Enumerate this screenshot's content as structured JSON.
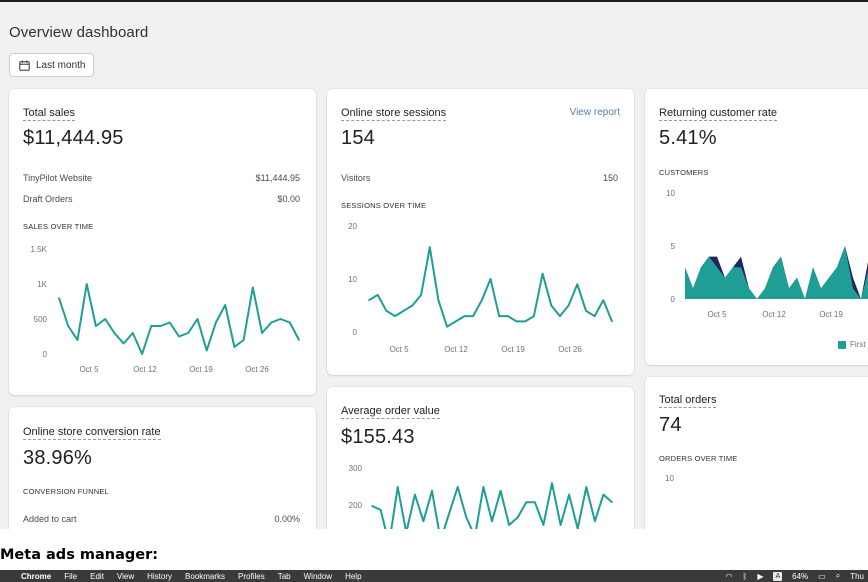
{
  "page": {
    "title": "Overview dashboard",
    "date_range": "Last month"
  },
  "cards": {
    "total_sales": {
      "title": "Total sales",
      "value": "$11,444.95",
      "rows": [
        {
          "label": "TinyPilot Website",
          "value": "$11,444.95"
        },
        {
          "label": "Draft Orders",
          "value": "$0.00"
        }
      ],
      "section_label": "SALES OVER TIME"
    },
    "sessions": {
      "title": "Online store sessions",
      "link": "View report",
      "value": "154",
      "rows": [
        {
          "label": "Visitors",
          "value": "150"
        }
      ],
      "section_label": "SESSIONS OVER TIME"
    },
    "returning": {
      "title": "Returning customer rate",
      "value": "5.41%",
      "section_label": "CUSTOMERS",
      "legend": "First"
    },
    "conversion": {
      "title": "Online store conversion rate",
      "value": "38.96%",
      "section_label": "CONVERSION FUNNEL",
      "rows": [
        {
          "label": "Added to cart",
          "value": "0.00%"
        }
      ]
    },
    "aov": {
      "title": "Average order value",
      "value": "$155.43"
    },
    "total_orders": {
      "title": "Total orders",
      "value": "74",
      "section_label": "ORDERS OVER TIME",
      "y_tick": "10"
    }
  },
  "chart_data": [
    {
      "type": "line",
      "title": "SALES OVER TIME",
      "y_ticks": [
        "1.5K",
        "1K",
        "500",
        "0"
      ],
      "ylim": [
        0,
        1500
      ],
      "x_ticks": [
        "Oct 5",
        "Oct 12",
        "Oct 19",
        "Oct 26"
      ],
      "color": "#1f9e96",
      "values": [
        800,
        400,
        200,
        1000,
        400,
        500,
        300,
        150,
        300,
        0,
        400,
        400,
        450,
        250,
        300,
        500,
        50,
        450,
        700,
        100,
        200,
        950,
        300,
        450,
        500,
        450,
        200
      ]
    },
    {
      "type": "line",
      "title": "SESSIONS OVER TIME",
      "y_ticks": [
        "20",
        "10",
        "0"
      ],
      "ylim": [
        0,
        20
      ],
      "x_ticks": [
        "Oct 5",
        "Oct 12",
        "Oct 19",
        "Oct 26"
      ],
      "color": "#1f9e96",
      "values": [
        6,
        7,
        4,
        3,
        4,
        5,
        7,
        16,
        6,
        1,
        2,
        3,
        3,
        6,
        10,
        3,
        3,
        2,
        2,
        3,
        11,
        5,
        3,
        5,
        9,
        4,
        3,
        6,
        2
      ]
    },
    {
      "type": "area",
      "title": "CUSTOMERS",
      "y_ticks": [
        "10",
        "5",
        "0"
      ],
      "ylim": [
        0,
        10
      ],
      "x_ticks": [
        "Oct 5",
        "Oct 12",
        "Oct 19"
      ],
      "series": [
        {
          "name": "First",
          "color": "#1f9e96",
          "values": [
            3,
            1,
            3,
            4,
            3,
            2,
            3,
            3,
            1,
            0,
            1,
            3,
            4,
            1,
            2,
            0,
            3,
            1,
            2,
            3,
            5,
            1,
            0,
            3,
            0
          ]
        },
        {
          "color": "#1f2463",
          "values": [
            0,
            0,
            0,
            0,
            1,
            0,
            0,
            1,
            0,
            0,
            0,
            0,
            0,
            0,
            0,
            0,
            0,
            0,
            0,
            0,
            0,
            1,
            0,
            1,
            0
          ]
        }
      ]
    },
    {
      "type": "line",
      "title": "",
      "y_ticks": [
        "300",
        "200"
      ],
      "ylim": [
        100,
        300
      ],
      "color": "#1f9e96",
      "values": [
        200,
        190,
        100,
        250,
        130,
        230,
        160,
        240,
        110,
        180,
        250,
        170,
        120,
        250,
        160,
        240,
        150,
        170,
        210,
        210,
        150,
        260,
        150,
        230,
        140,
        250,
        160,
        230,
        210
      ]
    }
  ],
  "caption": "Meta ads manager:",
  "menubar": {
    "apple": "",
    "app": "Chrome",
    "items": [
      "File",
      "Edit",
      "View",
      "History",
      "Bookmarks",
      "Profiles",
      "Tab",
      "Window",
      "Help"
    ],
    "battery": "64%",
    "input": "A",
    "clock": "Thu"
  }
}
